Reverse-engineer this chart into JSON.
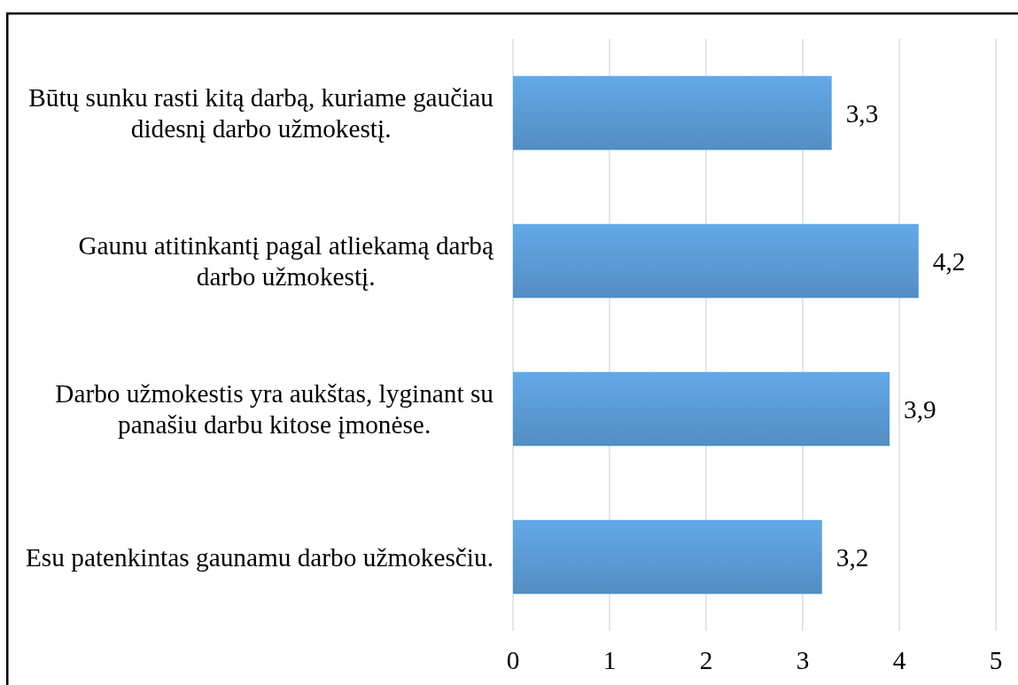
{
  "chart_data": {
    "type": "bar",
    "orientation": "horizontal",
    "categories": [
      "Būtų sunku rasti kitą darbą, kuriame gaučiau didesnį darbo užmokestį.",
      "Gaunu atitinkantį pagal atliekamą darbą darbo užmokestį.",
      "Darbo užmokestis yra aukštas, lyginant su panašiu darbu kitose įmonėse.",
      "Esu patenkintas gaunamu darbo užmokesčiu."
    ],
    "values": [
      3.3,
      4.2,
      3.9,
      3.2
    ],
    "value_labels": [
      "3,3",
      "4,2",
      "3,9",
      "3,2"
    ],
    "color": "#5b9bd5",
    "xlim": [
      0,
      5
    ],
    "xticks": [
      0,
      1,
      2,
      3,
      4,
      5
    ],
    "grid": "x"
  }
}
